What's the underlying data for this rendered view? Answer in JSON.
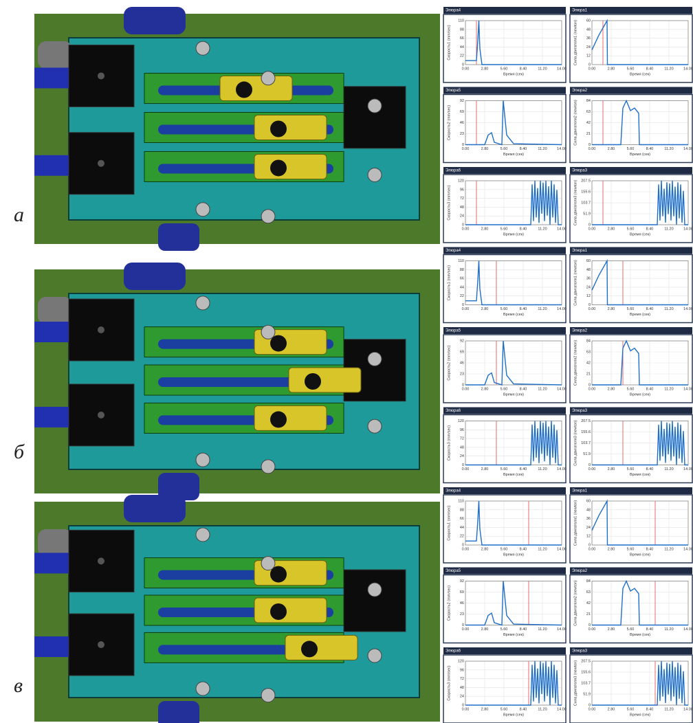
{
  "states": [
    {
      "label": "а",
      "cursor": 1.6
    },
    {
      "label": "б",
      "cursor": 4.5
    },
    {
      "label": "в",
      "cursor": 9.2
    }
  ],
  "xlabel": "Время (сек)",
  "xlim": [
    0,
    14
  ],
  "xticks": [
    {
      "value": 0,
      "label": "0.00"
    },
    {
      "value": 2.8,
      "label": "2.80"
    },
    {
      "value": 5.6,
      "label": "5.60"
    },
    {
      "value": 8.4,
      "label": "8.40"
    },
    {
      "value": 11.2,
      "label": "11.20"
    },
    {
      "value": 14,
      "label": "14.00"
    }
  ],
  "plots": [
    {
      "title": "Эпюра4",
      "ylabel": "Скорость1 (mm/sec)",
      "ylim": [
        0,
        110
      ],
      "yticks": [
        0,
        22,
        44,
        66,
        88,
        110
      ],
      "x": [
        0,
        1.6,
        1.8,
        1.95,
        2.1,
        2.4,
        14
      ],
      "y": [
        10,
        10,
        60,
        110,
        40,
        0,
        0
      ]
    },
    {
      "title": "Эпюра1",
      "ylabel": "Сила двигателя1 (newton)",
      "ylim": [
        0,
        60
      ],
      "yticks": [
        0,
        12,
        24,
        36,
        48,
        60
      ],
      "x": [
        0,
        1,
        2.2,
        2.25,
        14
      ],
      "y": [
        20,
        40,
        60,
        0,
        0
      ]
    },
    {
      "title": "Эпюра5",
      "ylabel": "Скорость2 (mm/sec)",
      "ylim": [
        0,
        92
      ],
      "yticks": [
        0,
        23,
        46,
        69,
        92
      ],
      "x": [
        0,
        2.8,
        3.3,
        3.8,
        4.2,
        5.3,
        5.4,
        5.5,
        6,
        7,
        14
      ],
      "y": [
        0,
        0,
        20,
        25,
        5,
        0,
        50,
        92,
        20,
        2,
        0
      ]
    },
    {
      "title": "Эпюра2",
      "ylabel": "Сила двигателя2 (newton)",
      "ylim": [
        0,
        84
      ],
      "yticks": [
        0,
        21,
        42,
        63,
        84
      ],
      "x": [
        0,
        4.2,
        4.5,
        5,
        5.6,
        6.2,
        6.8,
        6.9,
        14
      ],
      "y": [
        0,
        0,
        70,
        84,
        65,
        70,
        60,
        0,
        0
      ]
    },
    {
      "title": "Эпюра6",
      "ylabel": "Скорость3 (mm/sec)",
      "ylim": [
        0,
        120
      ],
      "yticks": [
        0,
        24,
        48,
        72,
        96,
        120
      ],
      "x": [
        0,
        9.5,
        9.7,
        9.9,
        10.1,
        10.3,
        10.5,
        10.7,
        10.9,
        11.1,
        11.3,
        11.5,
        11.7,
        11.9,
        12.1,
        12.3,
        12.5,
        12.7,
        12.9,
        13.1,
        13.3,
        13.5,
        13.7,
        14
      ],
      "y": [
        0,
        0,
        110,
        10,
        120,
        20,
        100,
        5,
        120,
        30,
        115,
        10,
        120,
        25,
        105,
        0,
        120,
        20,
        110,
        5,
        95,
        0,
        0,
        0
      ]
    },
    {
      "title": "Эпюра3",
      "ylabel": "Сила двигателя3 (newton)",
      "ylim": [
        0,
        207.5
      ],
      "yticks": [
        0,
        51.9,
        103.7,
        155.6,
        207.5
      ],
      "x": [
        0,
        9.5,
        9.7,
        9.9,
        10.1,
        10.3,
        10.5,
        10.7,
        10.9,
        11.1,
        11.3,
        11.5,
        11.7,
        11.9,
        12.1,
        12.3,
        12.5,
        12.7,
        12.9,
        13.1,
        13.3,
        13.5,
        13.7,
        14
      ],
      "y": [
        0,
        0,
        190,
        20,
        207.5,
        40,
        170,
        10,
        200,
        50,
        195,
        20,
        207.5,
        40,
        180,
        0,
        200,
        30,
        190,
        10,
        160,
        0,
        0,
        0
      ]
    }
  ]
}
